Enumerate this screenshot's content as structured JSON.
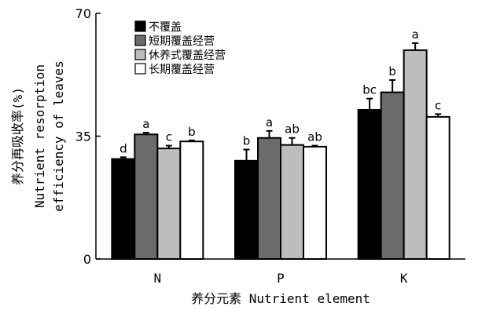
{
  "chart_data": {
    "type": "bar",
    "categories": [
      "N",
      "P",
      "K"
    ],
    "series": [
      {
        "name": "不覆盖",
        "values": [
          28.5,
          28.0,
          42.5
        ],
        "errors": [
          0.5,
          3.2,
          3.2
        ],
        "letters": [
          "d",
          "b",
          "bc"
        ],
        "fill": "#000000"
      },
      {
        "name": "短期覆盖经营",
        "values": [
          35.5,
          34.5,
          47.5
        ],
        "errors": [
          0.5,
          2.0,
          3.5
        ],
        "letters": [
          "a",
          "a",
          "b"
        ],
        "fill": "#6b6b6b"
      },
      {
        "name": "休养式覆盖经营",
        "values": [
          31.5,
          32.5,
          59.5
        ],
        "errors": [
          0.8,
          2.0,
          2.0
        ],
        "letters": [
          "c",
          "ab",
          "a"
        ],
        "fill": "#bdbdbd"
      },
      {
        "name": "长期覆盖经营",
        "values": [
          33.5,
          32.0,
          40.5
        ],
        "errors": [
          0.3,
          0.3,
          0.8
        ],
        "letters": [
          "b",
          "ab",
          "c"
        ],
        "fill": "#ffffff"
      }
    ],
    "ylim": [
      0,
      70
    ],
    "yticks": [
      "0",
      "35",
      "70"
    ],
    "ylabel_cn": "养分再吸收率(%)",
    "ylabel_en_line1": "Nutrient resorption",
    "ylabel_en_line2": "efficiency of leaves",
    "xlabel": "养分元素 Nutrient element",
    "legend_position": "top-left"
  }
}
